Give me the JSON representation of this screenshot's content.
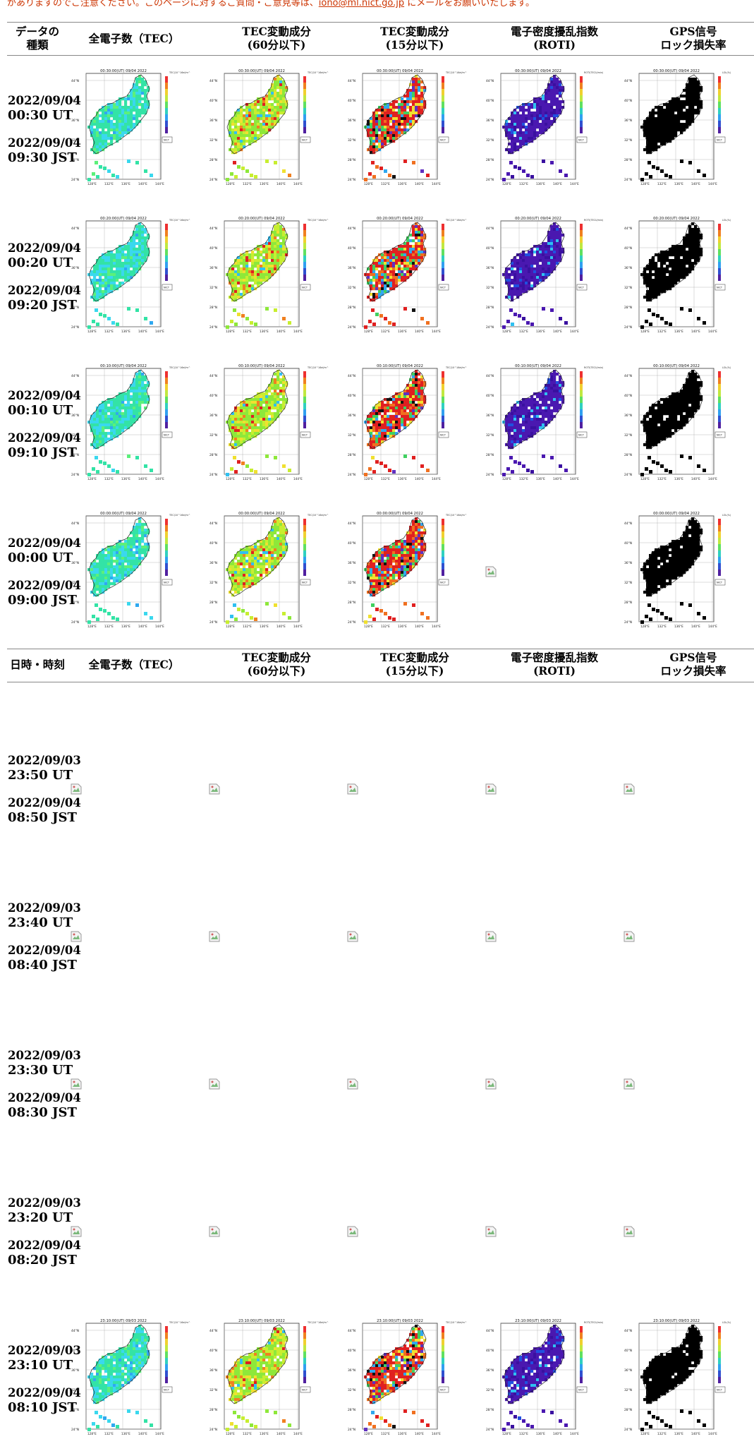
{
  "notice": {
    "text": "がありますのでご注意ください。このページに対するご質問・ご意見等は、",
    "email": "iono@ml.nict.go.jp",
    "suffix": " にメールをお願いいたします。"
  },
  "header1": {
    "c0": [
      "データの",
      "種類"
    ],
    "c1": [
      "全電子数（TEC）"
    ],
    "c2": [
      "TEC変動成分",
      "(60分以下)"
    ],
    "c3": [
      "TEC変動成分",
      "(15分以下)"
    ],
    "c4": [
      "電子密度擾乱指数",
      "(ROTI)"
    ],
    "c5": [
      "GPS信号",
      "ロック損失率"
    ]
  },
  "header2": {
    "c0": [
      "日時・時刻"
    ],
    "c1": [
      "全電子数（TEC）"
    ],
    "c2": [
      "TEC変動成分",
      "(60分以下)"
    ],
    "c3": [
      "TEC変動成分",
      "(15分以下)"
    ],
    "c4": [
      "電子密度擾乱指数",
      "(ROTI)"
    ],
    "c5": [
      "GPS信号",
      "ロック損失率"
    ]
  },
  "rows": [
    {
      "ut_date": "2022/09/04",
      "ut_time": "00:30 UT",
      "jst_date": "2022/09/04",
      "jst_time": "09:30 JST",
      "map_title": "00:30:00(UT) 09/04 2022",
      "maps": [
        "tec",
        "dtec60",
        "dtec15",
        "roti",
        "lol"
      ]
    },
    {
      "ut_date": "2022/09/04",
      "ut_time": "00:20 UT",
      "jst_date": "2022/09/04",
      "jst_time": "09:20 JST",
      "map_title": "00:20:00(UT) 09/04 2022",
      "maps": [
        "tec",
        "dtec60",
        "dtec15",
        "roti",
        "lol"
      ]
    },
    {
      "ut_date": "2022/09/04",
      "ut_time": "00:10 UT",
      "jst_date": "2022/09/04",
      "jst_time": "09:10 JST",
      "map_title": "00:10:00(UT) 09/04 2022",
      "maps": [
        "tec",
        "dtec60",
        "dtec15",
        "roti",
        "lol"
      ]
    },
    {
      "ut_date": "2022/09/04",
      "ut_time": "00:00 UT",
      "jst_date": "2022/09/04",
      "jst_time": "09:00 JST",
      "map_title": "00:00:00(UT) 09/04 2022",
      "maps": [
        "tec",
        "dtec60",
        "dtec15",
        "broken",
        "lol"
      ]
    },
    {
      "ut_date": "2022/09/03",
      "ut_time": "23:50 UT",
      "jst_date": "2022/09/04",
      "jst_time": "08:50 JST",
      "map_title": "",
      "maps": [
        "broken",
        "broken",
        "broken",
        "broken",
        "broken"
      ]
    },
    {
      "ut_date": "2022/09/03",
      "ut_time": "23:40 UT",
      "jst_date": "2022/09/04",
      "jst_time": "08:40 JST",
      "map_title": "",
      "maps": [
        "broken",
        "broken",
        "broken",
        "broken",
        "broken"
      ]
    },
    {
      "ut_date": "2022/09/03",
      "ut_time": "23:30 UT",
      "jst_date": "2022/09/04",
      "jst_time": "08:30 JST",
      "map_title": "",
      "maps": [
        "broken",
        "broken",
        "broken",
        "broken",
        "broken"
      ]
    },
    {
      "ut_date": "2022/09/03",
      "ut_time": "23:20 UT",
      "jst_date": "2022/09/04",
      "jst_time": "08:20 JST",
      "map_title": "",
      "maps": [
        "broken",
        "broken",
        "broken",
        "broken",
        "broken"
      ]
    },
    {
      "ut_date": "2022/09/03",
      "ut_time": "23:10 UT",
      "jst_date": "2022/09/04",
      "jst_time": "08:10 JST",
      "map_title": "23:10:00(UT) 09/03 2022",
      "maps": [
        "tec",
        "dtec60",
        "dtec15",
        "roti",
        "lol"
      ]
    }
  ],
  "map_axes": {
    "lat_labels": [
      "44°N",
      "40°N",
      "36°N",
      "32°N",
      "28°N",
      "24°N"
    ],
    "lon_labels": [
      "128°E",
      "132°E",
      "136°E",
      "140°E",
      "144°E"
    ],
    "legend_tec": "TEC(10^16el/m^2)",
    "legend_roti": "ROTI(TECU/min)",
    "legend_lol": "LOL(%)",
    "nict": "NICT"
  },
  "colors": {
    "notice_red": "#cc3300",
    "rule_gray": "#888888",
    "tec_land": "#35e3a8",
    "tec_north": "#40d8f0",
    "dtec60_land": "#8ee83a",
    "dtec15_land": "#e02020",
    "roti_land": "#4a18b0",
    "lol_land": "#000000"
  }
}
